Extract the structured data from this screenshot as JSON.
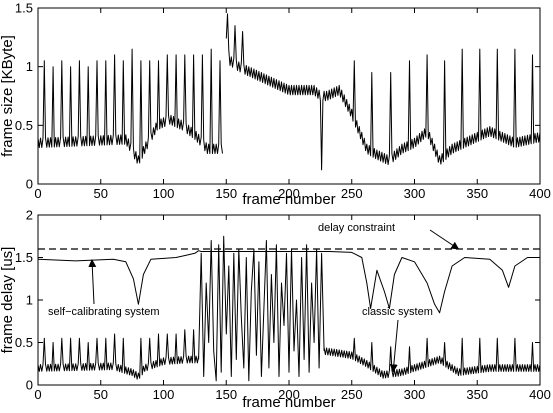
{
  "chart_data": [
    {
      "type": "line",
      "title": "",
      "xlabel": "frame number",
      "ylabel": "frame size [KByte]",
      "xlim": [
        0,
        400
      ],
      "ylim": [
        0,
        1.5
      ],
      "xticks": [
        0,
        50,
        100,
        150,
        200,
        250,
        300,
        350,
        400
      ],
      "yticks": [
        0,
        0.5,
        1,
        1.5
      ],
      "grid": false,
      "series": [
        {
          "style": "solid",
          "baseline_segments": [
            {
              "x": [
                0,
                70,
                80,
                95,
                105,
                115,
                125,
                135,
                147
              ],
              "y": [
                0.35,
                0.38,
                0.2,
                0.5,
                0.55,
                0.5,
                0.42,
                0.3,
                0.3
              ]
            },
            {
              "x": [
                150,
                153,
                160,
                170,
                180,
                200,
                220,
                225,
                230,
                240,
                250
              ],
              "y": [
                1.2,
                1.05,
                1.0,
                0.95,
                0.9,
                0.8,
                0.8,
                0.75,
                0.75,
                0.8,
                0.6
              ]
            },
            {
              "x": [
                250,
                256,
                262,
                270,
                280,
                290,
                300,
                310,
                320,
                330,
                350,
                360,
                380,
                400
              ],
              "y": [
                0.6,
                0.45,
                0.3,
                0.25,
                0.2,
                0.3,
                0.35,
                0.45,
                0.2,
                0.3,
                0.4,
                0.45,
                0.35,
                0.4
              ]
            }
          ],
          "oscillation_amplitude": 0.04,
          "spikes": [
            {
              "x": 5,
              "y": 1.05
            },
            {
              "x": 12,
              "y": 1.0
            },
            {
              "x": 19,
              "y": 1.05
            },
            {
              "x": 26,
              "y": 1.0
            },
            {
              "x": 33,
              "y": 1.05
            },
            {
              "x": 40,
              "y": 1.0
            },
            {
              "x": 47,
              "y": 1.05
            },
            {
              "x": 54,
              "y": 1.05
            },
            {
              "x": 61,
              "y": 1.1
            },
            {
              "x": 68,
              "y": 1.05
            },
            {
              "x": 75,
              "y": 1.15
            },
            {
              "x": 82,
              "y": 1.05
            },
            {
              "x": 89,
              "y": 1.05
            },
            {
              "x": 96,
              "y": 1.05
            },
            {
              "x": 103,
              "y": 1.1
            },
            {
              "x": 110,
              "y": 1.1
            },
            {
              "x": 117,
              "y": 1.1
            },
            {
              "x": 124,
              "y": 1.1
            },
            {
              "x": 131,
              "y": 1.1
            },
            {
              "x": 138,
              "y": 1.15
            },
            {
              "x": 145,
              "y": 1.05
            },
            {
              "x": 151,
              "y": 1.45
            },
            {
              "x": 157,
              "y": 1.35
            },
            {
              "x": 163,
              "y": 1.3
            },
            {
              "x": 252,
              "y": 1.05
            },
            {
              "x": 266,
              "y": 0.95
            },
            {
              "x": 281,
              "y": 0.95
            },
            {
              "x": 296,
              "y": 1.05
            },
            {
              "x": 310,
              "y": 1.1
            },
            {
              "x": 324,
              "y": 1.05
            },
            {
              "x": 338,
              "y": 1.15
            },
            {
              "x": 352,
              "y": 1.15
            },
            {
              "x": 366,
              "y": 1.15
            },
            {
              "x": 380,
              "y": 1.15
            },
            {
              "x": 394,
              "y": 1.1
            }
          ],
          "dips": [
            {
              "x": 226,
              "y": 0.12
            }
          ]
        }
      ]
    },
    {
      "type": "line",
      "title": "",
      "xlabel": "frame number",
      "ylabel": "frame delay [us]",
      "xlim": [
        0,
        400
      ],
      "ylim": [
        0,
        2
      ],
      "xticks": [
        0,
        50,
        100,
        150,
        200,
        250,
        300,
        350,
        400
      ],
      "yticks": [
        0,
        0.5,
        1,
        1.5,
        2
      ],
      "grid": false,
      "series": [
        {
          "style": "dashed",
          "x": [
            0,
            400
          ],
          "y": [
            1.6,
            1.6
          ]
        },
        {
          "style": "solid",
          "x": [
            0,
            30,
            60,
            70,
            76,
            80,
            84,
            90,
            110,
            125,
            128,
            130,
            228,
            232,
            250,
            258,
            262,
            265,
            270,
            276,
            280,
            284,
            290,
            300,
            310,
            316,
            320,
            324,
            330,
            340,
            360,
            370,
            375,
            380,
            390,
            400
          ],
          "y": [
            1.48,
            1.46,
            1.48,
            1.45,
            1.25,
            0.95,
            1.3,
            1.48,
            1.5,
            1.55,
            1.58,
            1.57,
            1.57,
            1.57,
            1.56,
            1.5,
            1.2,
            0.9,
            1.35,
            1.1,
            0.9,
            1.3,
            1.5,
            1.45,
            1.2,
            0.95,
            0.85,
            1.1,
            1.4,
            1.5,
            1.48,
            1.35,
            1.15,
            1.4,
            1.5,
            1.5
          ]
        },
        {
          "style": "solid",
          "baseline_segments": [
            {
              "x": [
                0,
                60,
                75,
                80,
                85,
                100,
                120,
                128
              ],
              "y": [
                0.2,
                0.22,
                0.15,
                0.1,
                0.2,
                0.28,
                0.3,
                0.3
              ]
            },
            {
              "x": [
                228,
                250,
                262,
                275,
                290,
                300,
                310,
                320,
                335,
                360,
                400
              ],
              "y": [
                0.4,
                0.35,
                0.25,
                0.12,
                0.15,
                0.2,
                0.25,
                0.3,
                0.15,
                0.2,
                0.2
              ]
            }
          ],
          "oscillation_amplitude": 0.04,
          "spikes": [
            {
              "x": 5,
              "y": 0.55
            },
            {
              "x": 12,
              "y": 0.5
            },
            {
              "x": 19,
              "y": 0.55
            },
            {
              "x": 26,
              "y": 0.55
            },
            {
              "x": 33,
              "y": 0.55
            },
            {
              "x": 40,
              "y": 0.5
            },
            {
              "x": 47,
              "y": 0.55
            },
            {
              "x": 54,
              "y": 0.55
            },
            {
              "x": 61,
              "y": 0.6
            },
            {
              "x": 68,
              "y": 0.55
            },
            {
              "x": 82,
              "y": 0.55
            },
            {
              "x": 89,
              "y": 0.55
            },
            {
              "x": 96,
              "y": 0.6
            },
            {
              "x": 103,
              "y": 0.6
            },
            {
              "x": 110,
              "y": 0.6
            },
            {
              "x": 117,
              "y": 0.65
            },
            {
              "x": 124,
              "y": 0.65
            },
            {
              "x": 252,
              "y": 0.55
            },
            {
              "x": 266,
              "y": 0.5
            },
            {
              "x": 281,
              "y": 0.45
            },
            {
              "x": 296,
              "y": 0.45
            },
            {
              "x": 310,
              "y": 0.55
            },
            {
              "x": 324,
              "y": 0.5
            },
            {
              "x": 338,
              "y": 0.55
            },
            {
              "x": 352,
              "y": 0.55
            },
            {
              "x": 366,
              "y": 0.55
            },
            {
              "x": 380,
              "y": 0.55
            },
            {
              "x": 394,
              "y": 0.5
            }
          ]
        },
        {
          "style": "solid",
          "x": [
            128,
            130,
            132,
            134,
            136,
            138,
            140,
            142,
            144,
            146,
            148,
            150,
            152,
            154,
            156,
            158,
            160,
            162,
            164,
            166,
            168,
            170,
            172,
            174,
            176,
            178,
            180,
            182,
            184,
            186,
            188,
            190,
            192,
            194,
            196,
            198,
            200,
            202,
            204,
            206,
            208,
            210,
            212,
            214,
            216,
            218,
            220,
            222,
            224,
            226,
            228
          ],
          "y": [
            0.3,
            1.55,
            0.1,
            1.2,
            0.5,
            1.7,
            0.4,
            0.05,
            1.65,
            0.15,
            1.75,
            0.6,
            1.4,
            0.1,
            1.55,
            0.3,
            1.6,
            0.8,
            0.2,
            1.5,
            0.05,
            1.1,
            1.6,
            0.35,
            1.45,
            0.1,
            0.9,
            1.7,
            0.2,
            1.3,
            0.5,
            1.65,
            0.1,
            1.2,
            0.7,
            1.55,
            0.15,
            1.6,
            0.4,
            1.0,
            0.1,
            1.5,
            0.3,
            1.65,
            0.15,
            1.2,
            0.5,
            1.6,
            0.2,
            1.55,
            0.4
          ]
        }
      ],
      "annotations": [
        {
          "text": "delay constraint",
          "arrow_to": {
            "x": 335,
            "y": 1.6
          }
        },
        {
          "text": "self−calibrating system",
          "arrow_to": {
            "x": 43,
            "y": 1.47
          }
        },
        {
          "text": "classic system",
          "arrow_to": {
            "x": 283,
            "y": 0.16
          }
        }
      ]
    }
  ]
}
